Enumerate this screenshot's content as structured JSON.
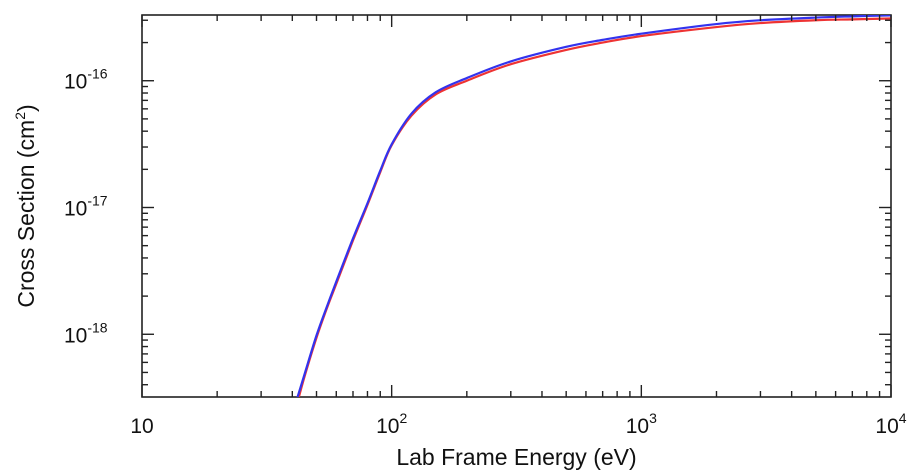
{
  "chart_data": {
    "type": "line",
    "title": "",
    "xlabel": "Lab Frame Energy (eV)",
    "ylabel": "Cross Section (cm",
    "ylabel_superscript": "2",
    "ylabel_suffix": ")",
    "x_scale": "log",
    "y_scale": "log",
    "xlim": [
      10,
      10000
    ],
    "ylim": [
      3.2e-19,
      3.3e-16
    ],
    "grid": false,
    "legend": "none",
    "x_ticks": [
      {
        "value": 10,
        "base": "10",
        "exp": ""
      },
      {
        "value": 100,
        "base": "10",
        "exp": "2"
      },
      {
        "value": 1000,
        "base": "10",
        "exp": "3"
      },
      {
        "value": 10000,
        "base": "10",
        "exp": "4"
      }
    ],
    "y_ticks": [
      {
        "value": 1e-18,
        "base": "10",
        "exp": "-18"
      },
      {
        "value": 1e-17,
        "base": "10",
        "exp": "-17"
      },
      {
        "value": 1e-16,
        "base": "10",
        "exp": "-16"
      }
    ],
    "series": [
      {
        "color": "#ee3333",
        "x": [
          42.5,
          45,
          50,
          55,
          60,
          70,
          80,
          90,
          100,
          120,
          150,
          200,
          300,
          500,
          700,
          1000,
          2000,
          3000,
          5000,
          7000,
          10000
        ],
        "y": [
          3.2e-19,
          4.8e-19,
          9.4e-19,
          1.6e-18,
          2.5e-18,
          5.5e-18,
          1.05e-17,
          1.9e-17,
          3.1e-17,
          5.3e-17,
          7.8e-17,
          1e-16,
          1.35e-16,
          1.75e-16,
          2e-16,
          2.25e-16,
          2.65e-16,
          2.85e-16,
          3e-16,
          3.05e-16,
          3.1e-16
        ]
      },
      {
        "color": "#3333ee",
        "x": [
          42.0,
          45,
          50,
          55,
          60,
          70,
          80,
          90,
          100,
          120,
          150,
          200,
          300,
          500,
          700,
          1000,
          2000,
          3000,
          5000,
          7000,
          10000
        ],
        "y": [
          3.2e-19,
          5e-19,
          9.8e-19,
          1.65e-18,
          2.6e-18,
          5.7e-18,
          1.08e-17,
          1.95e-17,
          3.15e-17,
          5.5e-17,
          8.1e-17,
          1.05e-16,
          1.42e-16,
          1.85e-16,
          2.1e-16,
          2.35e-16,
          2.8e-16,
          3e-16,
          3.15e-16,
          3.22e-16,
          3.28e-16
        ]
      }
    ]
  }
}
